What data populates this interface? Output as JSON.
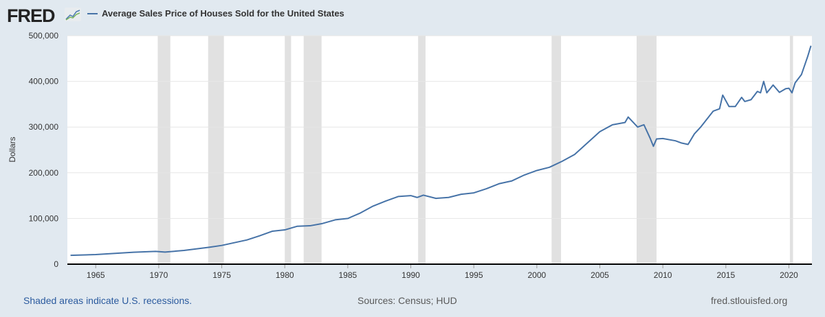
{
  "header": {
    "logo": "FRED",
    "legend": "Average Sales Price of Houses Sold for the United States"
  },
  "footer": {
    "note": "Shaded areas indicate U.S. recessions.",
    "sources": "Sources: Census; HUD",
    "site": "fred.stlouisfed.org"
  },
  "colors": {
    "line": "#4572a7",
    "recession": "#e1e1e1",
    "background": "#e1e9f0"
  },
  "chart_data": {
    "type": "line",
    "title": "Average Sales Price of Houses Sold for the United States",
    "xlabel": "",
    "ylabel": "Dollars",
    "xlim": [
      1962.75,
      2021.83
    ],
    "ylim": [
      0,
      500000
    ],
    "yticks": [
      0,
      100000,
      200000,
      300000,
      400000,
      500000
    ],
    "ytick_labels": [
      "0",
      "100,000",
      "200,000",
      "300,000",
      "400,000",
      "500,000"
    ],
    "xticks": [
      1965,
      1970,
      1975,
      1980,
      1985,
      1990,
      1995,
      2000,
      2005,
      2010,
      2015,
      2020
    ],
    "recessions": [
      [
        1969.92,
        1970.92
      ],
      [
        1973.92,
        1975.17
      ],
      [
        1980.0,
        1980.5
      ],
      [
        1981.5,
        1982.92
      ],
      [
        1990.58,
        1991.17
      ],
      [
        2001.17,
        2001.92
      ],
      [
        2007.92,
        2009.5
      ],
      [
        2020.08,
        2020.33
      ]
    ],
    "series": [
      {
        "name": "Average Sales Price of Houses Sold for the United States",
        "x": [
          1963,
          1965,
          1968,
          1969.75,
          1970.5,
          1972,
          1974,
          1975,
          1976,
          1977,
          1978,
          1979,
          1980,
          1981,
          1982,
          1983,
          1984,
          1985,
          1986,
          1987,
          1988,
          1989,
          1990,
          1990.5,
          1991,
          1992,
          1993,
          1994,
          1995,
          1996,
          1997,
          1998,
          1999,
          2000,
          2001,
          2002,
          2003,
          2004,
          2005,
          2006,
          2007,
          2007.25,
          2008,
          2008.5,
          2009,
          2009.25,
          2009.5,
          2010,
          2011,
          2011.5,
          2012,
          2012.5,
          2013,
          2014,
          2014.5,
          2014.75,
          2015.25,
          2015.75,
          2016.25,
          2016.5,
          2017,
          2017.5,
          2017.75,
          2018,
          2018.25,
          2018.75,
          2019.25,
          2019.75,
          2020,
          2020.25,
          2020.5,
          2021,
          2021.5,
          2021.75
        ],
        "values": [
          19300,
          21000,
          26000,
          28000,
          26500,
          30000,
          37000,
          41000,
          47000,
          53000,
          62000,
          72000,
          75000,
          83000,
          84000,
          89000,
          97000,
          100000,
          112000,
          127000,
          138000,
          148000,
          150000,
          146000,
          151000,
          144000,
          146000,
          153000,
          156000,
          165000,
          176000,
          182000,
          195000,
          205000,
          212000,
          225000,
          240000,
          265000,
          290000,
          305000,
          310000,
          322000,
          300000,
          305000,
          275000,
          258000,
          274000,
          275000,
          270000,
          265000,
          262000,
          285000,
          300000,
          335000,
          340000,
          370000,
          345000,
          345000,
          365000,
          356000,
          360000,
          378000,
          375000,
          400000,
          375000,
          392000,
          376000,
          384000,
          385000,
          375000,
          397000,
          415000,
          455000,
          478000
        ]
      }
    ]
  }
}
